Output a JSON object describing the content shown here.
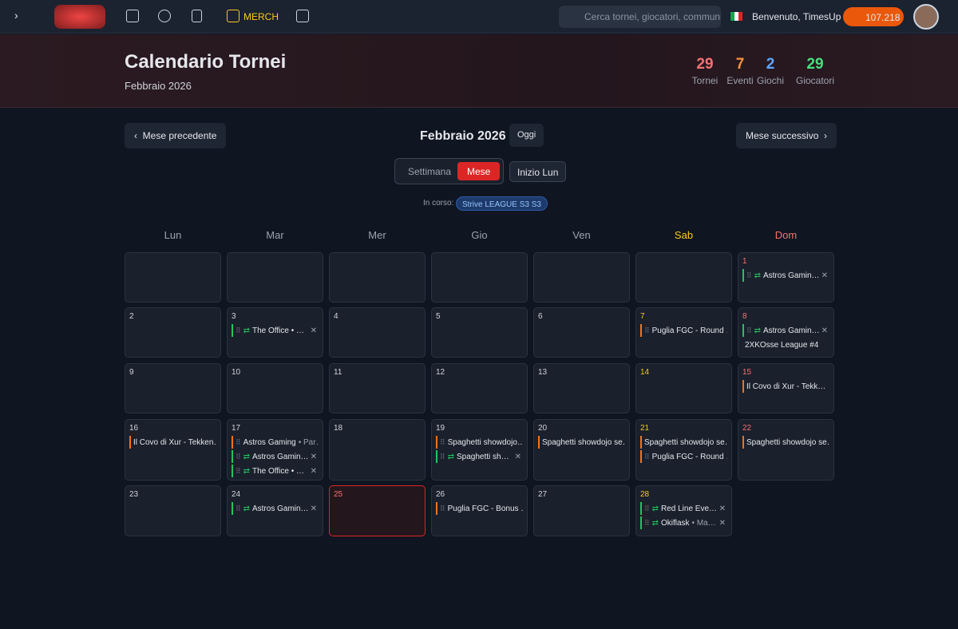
{
  "nav": {
    "merch": "MERCH",
    "search_placeholder": "Cerca tornei, giocatori, community",
    "welcome": "Benvenuto, TimesUp",
    "coins": "107.218"
  },
  "header": {
    "title": "Calendario Tornei",
    "subtitle": "Febbraio 2026",
    "stats": [
      {
        "value": 29,
        "label": "Tornei",
        "color": "#f87171"
      },
      {
        "value": 7,
        "label": "Eventi",
        "color": "#fb923c"
      },
      {
        "value": 2,
        "label": "Giochi",
        "color": "#60a5fa"
      },
      {
        "value": 29,
        "label": "Giocatori",
        "color": "#4ade80"
      }
    ]
  },
  "controls": {
    "prev": "Mese precedente",
    "month": "Febbraio 2026",
    "today": "Oggi",
    "next": "Mese successivo",
    "views": [
      "Settimana",
      "Mese"
    ],
    "active_view": 1,
    "week_start": "Inizio Lun",
    "ongoing_label": "In corso:",
    "ongoing_tag": "Strive LEAGUE S3 S3"
  },
  "weekdays": [
    "Lun",
    "Mar",
    "Mer",
    "Gio",
    "Ven",
    "Sab",
    "Dom"
  ],
  "weeks": [
    [
      null,
      null,
      null,
      null,
      null,
      null,
      {
        "day": 1,
        "events": [
          {
            "title": "Astros Gamin…",
            "color": "#22c55e",
            "handle": true,
            "recurring": true,
            "removable": true
          }
        ]
      }
    ],
    [
      {
        "day": 2,
        "events": []
      },
      {
        "day": 3,
        "events": [
          {
            "title": "The Office • …",
            "color": "#22c55e",
            "handle": true,
            "recurring": true,
            "removable": true
          }
        ]
      },
      {
        "day": 4,
        "events": []
      },
      {
        "day": 5,
        "events": []
      },
      {
        "day": 6,
        "events": []
      },
      {
        "day": 7,
        "events": [
          {
            "title": "Puglia FGC - Round …",
            "color": "#f97316",
            "handle": true
          }
        ]
      },
      {
        "day": 8,
        "events": [
          {
            "title": "Astros Gamin…",
            "color": "#22c55e",
            "handle": true,
            "recurring": true,
            "removable": true
          },
          {
            "title": "2XKOsse League #4"
          }
        ]
      }
    ],
    [
      {
        "day": 9,
        "events": []
      },
      {
        "day": 10,
        "events": []
      },
      {
        "day": 11,
        "events": []
      },
      {
        "day": 12,
        "events": []
      },
      {
        "day": 13,
        "events": []
      },
      {
        "day": 14,
        "events": []
      },
      {
        "day": 15,
        "events": [
          {
            "title": "Il Covo di Xur - Tekk…",
            "color": "#f97316"
          }
        ]
      }
    ],
    [
      {
        "day": 16,
        "events": [
          {
            "title": "Il Covo di Xur - Tekken…",
            "color": "#f97316"
          }
        ]
      },
      {
        "day": 17,
        "events": [
          {
            "title": "Astros Gaming",
            "sub": "• Par…",
            "color": "#f97316",
            "handle": true
          },
          {
            "title": "Astros Gamin…",
            "color": "#22c55e",
            "handle": true,
            "recurring": true,
            "removable": true
          },
          {
            "title": "The Office • …",
            "color": "#22c55e",
            "handle": true,
            "recurring": true,
            "removable": true
          }
        ]
      },
      {
        "day": 18,
        "events": []
      },
      {
        "day": 19,
        "events": [
          {
            "title": "Spaghetti showdojo…",
            "color": "#f97316",
            "handle": true
          },
          {
            "title": "Spaghetti sh…",
            "color": "#22c55e",
            "handle": true,
            "recurring": true,
            "removable": true
          }
        ]
      },
      {
        "day": 20,
        "events": [
          {
            "title": "Spaghetti showdojo se…",
            "color": "#f97316"
          }
        ]
      },
      {
        "day": 21,
        "events": [
          {
            "title": "Spaghetti showdojo se…",
            "color": "#f97316"
          },
          {
            "title": "Puglia FGC - Round …",
            "color": "#f97316",
            "handle": true
          }
        ]
      },
      {
        "day": 22,
        "events": [
          {
            "title": "Spaghetti showdojo se…",
            "color": "#f97316"
          }
        ]
      }
    ],
    [
      {
        "day": 23,
        "events": []
      },
      {
        "day": 24,
        "events": [
          {
            "title": "Astros Gamin…",
            "color": "#22c55e",
            "handle": true,
            "recurring": true,
            "removable": true
          }
        ]
      },
      {
        "day": 25,
        "today": true,
        "events": []
      },
      {
        "day": 26,
        "events": [
          {
            "title": "Puglia FGC - Bonus …",
            "color": "#f97316",
            "handle": true
          }
        ]
      },
      {
        "day": 27,
        "events": []
      },
      {
        "day": 28,
        "events": [
          {
            "title": "Red Line Eve…",
            "color": "#22c55e",
            "handle": true,
            "recurring": true,
            "removable": true
          },
          {
            "title": "Okiflask",
            "sub": "• Ma…",
            "color": "#22c55e",
            "handle": true,
            "recurring": true,
            "removable": true
          }
        ]
      }
    ]
  ]
}
